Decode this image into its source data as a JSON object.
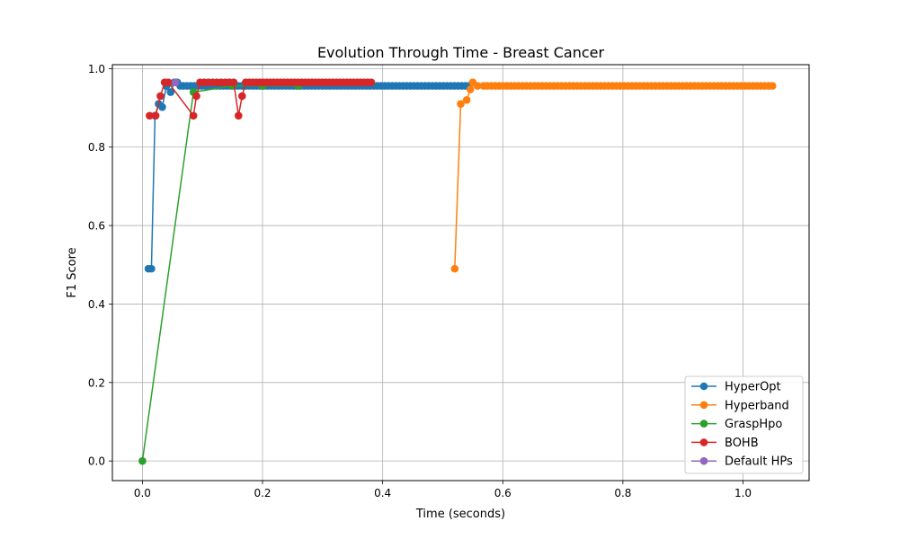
{
  "chart_data": {
    "type": "line",
    "title": "Evolution Through Time - Breast Cancer",
    "xlabel": "Time (seconds)",
    "ylabel": "F1 Score",
    "xlim": [
      -0.05,
      1.11
    ],
    "ylim": [
      -0.05,
      1.01
    ],
    "xticks": [
      0.0,
      0.2,
      0.4,
      0.6,
      0.8,
      1.0
    ],
    "yticks": [
      0.0,
      0.2,
      0.4,
      0.6,
      0.8,
      1.0
    ],
    "xtick_labels": [
      "0.0",
      "0.2",
      "0.4",
      "0.6",
      "0.8",
      "1.0"
    ],
    "ytick_labels": [
      "0.0",
      "0.2",
      "0.4",
      "0.6",
      "0.8",
      "1.0"
    ],
    "grid": true,
    "legend_position": "lower-right",
    "series": [
      {
        "name": "HyperOpt",
        "color": "#1f77b4",
        "marker": "circle",
        "points": [
          [
            0.01,
            0.49
          ],
          [
            0.015,
            0.49
          ],
          [
            0.021,
            0.88
          ],
          [
            0.027,
            0.91
          ],
          [
            0.033,
            0.902
          ],
          [
            0.04,
            0.955
          ],
          [
            0.047,
            0.94
          ],
          [
            0.053,
            0.965
          ],
          [
            0.058,
            0.965
          ],
          [
            0.063,
            0.956
          ],
          {
            "range": [
              0.068,
              0.545
            ],
            "step": 0.0061,
            "y": 0.956
          }
        ]
      },
      {
        "name": "Hyperband",
        "color": "#ff7f0e",
        "marker": "circle",
        "points": [
          [
            0.52,
            0.49
          ],
          [
            0.53,
            0.91
          ],
          [
            0.54,
            0.92
          ],
          [
            0.546,
            0.947
          ],
          [
            0.55,
            0.965
          ],
          [
            0.558,
            0.956
          ],
          {
            "range": [
              0.568,
              1.055
            ],
            "step": 0.0065,
            "y": 0.956
          }
        ]
      },
      {
        "name": "GraspHpo",
        "color": "#2ca02c",
        "marker": "circle",
        "points": [
          [
            0.0,
            0.0
          ],
          [
            0.085,
            0.94
          ],
          [
            0.15,
            0.956
          ],
          [
            0.2,
            0.956
          ],
          [
            0.26,
            0.956
          ]
        ]
      },
      {
        "name": "BOHB",
        "color": "#d62728",
        "marker": "circle",
        "points": [
          [
            0.012,
            0.88
          ],
          [
            0.022,
            0.88
          ],
          [
            0.03,
            0.93
          ],
          [
            0.037,
            0.965
          ],
          [
            0.043,
            0.965
          ],
          [
            0.085,
            0.88
          ],
          [
            0.09,
            0.93
          ],
          [
            0.096,
            0.965
          ],
          [
            0.103,
            0.965
          ],
          [
            0.11,
            0.965
          ],
          [
            0.117,
            0.965
          ],
          [
            0.124,
            0.965
          ],
          [
            0.131,
            0.965
          ],
          [
            0.138,
            0.965
          ],
          [
            0.145,
            0.965
          ],
          [
            0.152,
            0.965
          ],
          [
            0.16,
            0.88
          ],
          [
            0.166,
            0.93
          ],
          [
            0.172,
            0.965
          ],
          {
            "range": [
              0.178,
              0.385
            ],
            "step": 0.0058,
            "y": 0.965
          }
        ]
      },
      {
        "name": "Default HPs",
        "color": "#9467bd",
        "marker": "circle",
        "points": [
          [
            0.055,
            0.965
          ]
        ]
      }
    ]
  }
}
